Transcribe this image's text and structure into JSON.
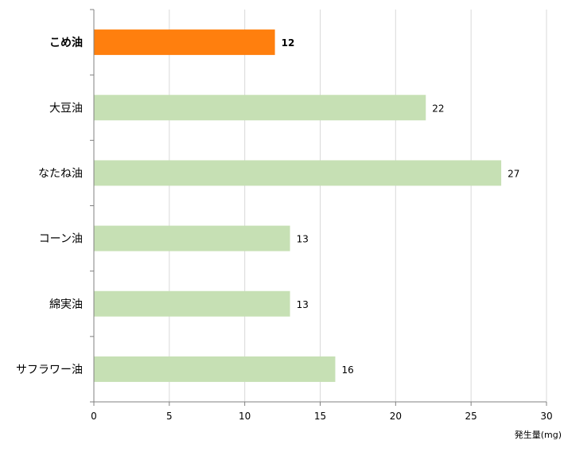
{
  "chart_data": {
    "type": "bar",
    "orientation": "horizontal",
    "categories": [
      "こめ油",
      "大豆油",
      "なたね油",
      "コーン油",
      "綿実油",
      "サフラワー油"
    ],
    "values": [
      12,
      22,
      27,
      13,
      13,
      16
    ],
    "value_labels": [
      "12",
      "22",
      "27",
      "13",
      "13",
      "16"
    ],
    "highlight_index": 0,
    "xlabel": "発生量(mg)",
    "ylabel": "",
    "xlim": [
      0,
      30
    ],
    "x_ticks": [
      "0",
      "5",
      "10",
      "15",
      "20",
      "25",
      "30"
    ],
    "grid": "vertical",
    "legend": "none",
    "colors": {
      "highlight": "#FF7F0E",
      "bar": "#C6E0B4",
      "grid": "#D9D9D9",
      "axis": "#808080"
    }
  }
}
